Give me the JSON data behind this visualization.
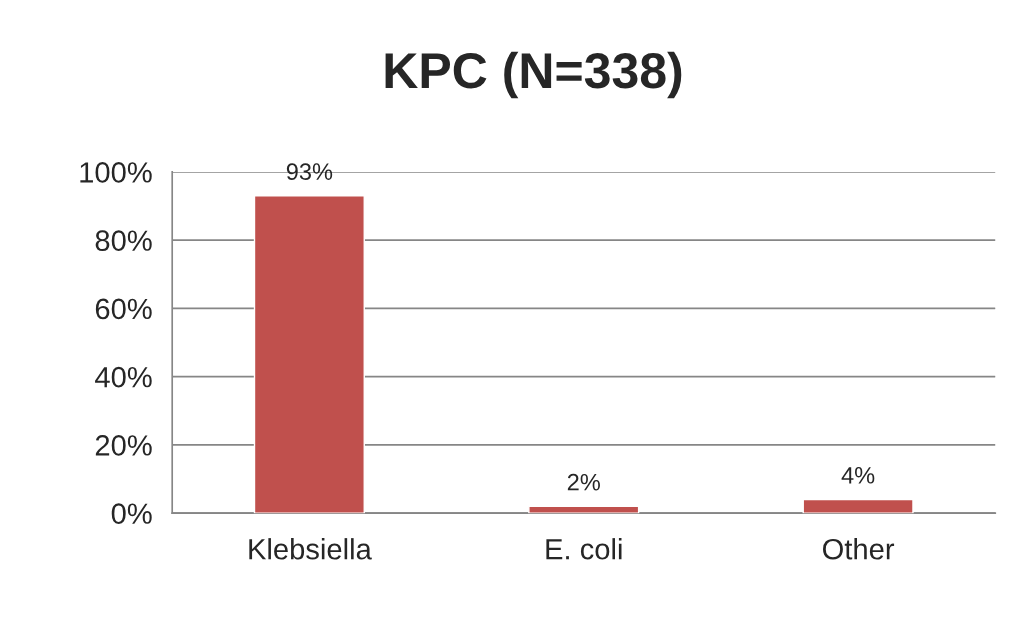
{
  "chart_data": {
    "type": "bar",
    "title": "KPC (N=338)",
    "categories": [
      "Klebsiella",
      "E. coli",
      "Other"
    ],
    "values": [
      93,
      2,
      4
    ],
    "value_labels": [
      "93%",
      "2%",
      "4%"
    ],
    "color": "#c0504d",
    "ylim": [
      0,
      100
    ],
    "yticks": [
      {
        "value": 0,
        "label": "0%"
      },
      {
        "value": 20,
        "label": "20%"
      },
      {
        "value": 40,
        "label": "40%"
      },
      {
        "value": 60,
        "label": "60%"
      },
      {
        "value": 80,
        "label": "80%"
      },
      {
        "value": 100,
        "label": "100%"
      }
    ],
    "grid": "y",
    "legend": false
  }
}
